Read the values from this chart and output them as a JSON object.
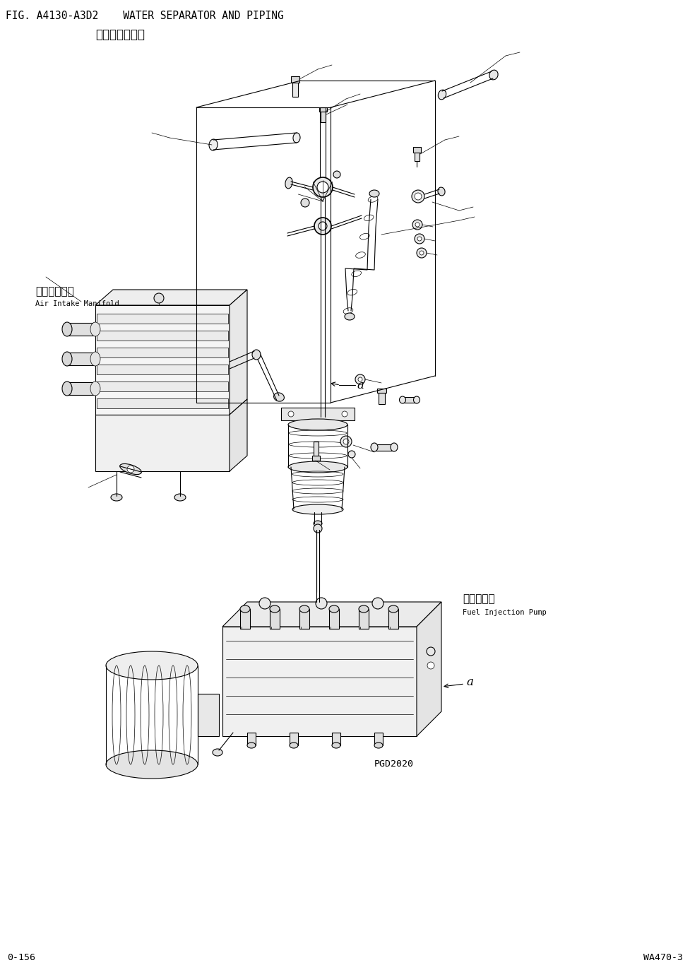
{
  "title_line1": "FIG. A4130-A3D2    WATER SEPARATOR AND PIPING",
  "title_line2": "水分离器和管道",
  "footer_left": "0-156",
  "footer_right": "WA470-3",
  "page_ref": "PGD2020",
  "bg_color": "#ffffff",
  "line_color": "#000000",
  "label_air_intake_cn": "空气进气歧管",
  "label_air_intake_en": "Air Intake Manifold",
  "label_fuel_pump_cn": "燃油喷射泵",
  "label_fuel_pump_en": "Fuel Injection Pump",
  "label_a": "a",
  "title_fontsize": 10.5,
  "subtitle_fontsize": 12,
  "footer_fontsize": 9.5,
  "fig_width": 9.77,
  "fig_height": 13.73
}
